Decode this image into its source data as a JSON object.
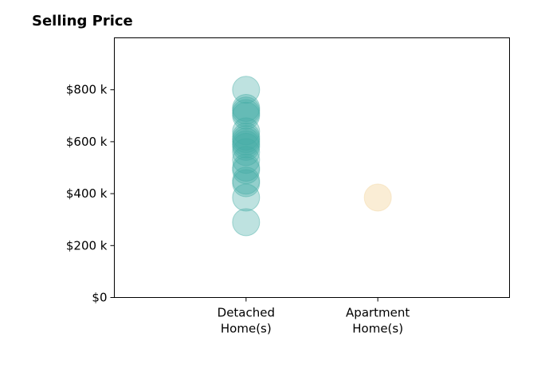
{
  "chart_data": {
    "type": "scatter",
    "title": "Selling Price",
    "xlabel": "",
    "ylabel": "",
    "categories": [
      [
        "Detached",
        "Home(s)"
      ],
      [
        "Apartment",
        "Home(s)"
      ]
    ],
    "y_ticks": [
      {
        "value": 0,
        "label": "$0"
      },
      {
        "value": 200000,
        "label": "$200 k"
      },
      {
        "value": 400000,
        "label": "$400 k"
      },
      {
        "value": 600000,
        "label": "$600 k"
      },
      {
        "value": 800000,
        "label": "$800 k"
      }
    ],
    "ylim": [
      0,
      1000000
    ],
    "xlim": [
      -1,
      2
    ],
    "grid": false,
    "series": [
      {
        "category_index": 0,
        "color": "#45ada5",
        "values": [
          800000,
          730000,
          720000,
          710000,
          700000,
          640000,
          620000,
          610000,
          600000,
          590000,
          580000,
          560000,
          530000,
          500000,
          490000,
          450000,
          440000,
          385000,
          290000
        ]
      },
      {
        "category_index": 1,
        "color": "#f5deb3",
        "values": [
          385000
        ]
      }
    ]
  }
}
